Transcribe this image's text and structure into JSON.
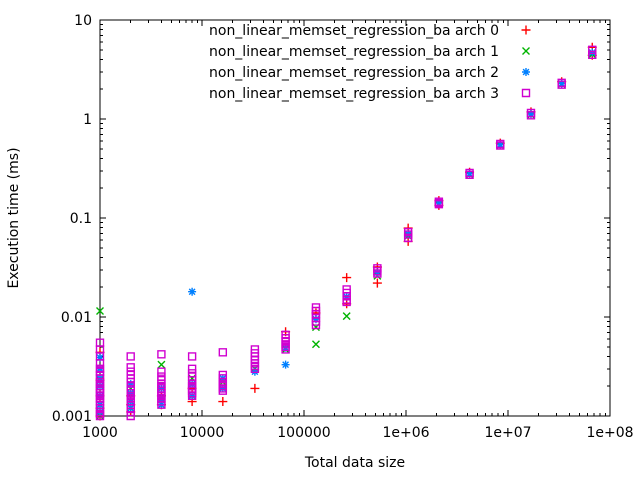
{
  "figure": {
    "background": "#ffffff",
    "frame_color": "#000000"
  },
  "chart_data": {
    "type": "scatter",
    "title": "",
    "xlabel": "Total data size",
    "ylabel": "Execution time (ms)",
    "x_scale": "log",
    "y_scale": "log",
    "xlim": [
      1000,
      100000000
    ],
    "ylim": [
      0.001,
      10
    ],
    "grid": false,
    "legend_position": "top-center-inside",
    "x_ticks": [
      {
        "value": 1000,
        "label": "1000"
      },
      {
        "value": 10000,
        "label": "10000"
      },
      {
        "value": 100000,
        "label": "100000"
      },
      {
        "value": 1000000,
        "label": "1e+06"
      },
      {
        "value": 10000000,
        "label": "1e+07"
      },
      {
        "value": 100000000,
        "label": "1e+08"
      }
    ],
    "y_ticks": [
      {
        "value": 0.001,
        "label": "0.001"
      },
      {
        "value": 0.01,
        "label": "0.01"
      },
      {
        "value": 0.1,
        "label": "0.1"
      },
      {
        "value": 1,
        "label": "1"
      },
      {
        "value": 10,
        "label": "10"
      }
    ],
    "series": [
      {
        "name": "non_linear_memset_regression_ba arch 0",
        "marker": "plus",
        "color": "#ff0000",
        "points": [
          [
            1000,
            0.0044
          ],
          [
            1000,
            0.0023
          ],
          [
            1000,
            0.0016
          ],
          [
            1000,
            0.0012
          ],
          [
            1000,
            0.001
          ],
          [
            2000,
            0.0016
          ],
          [
            2000,
            0.0013
          ],
          [
            2000,
            0.0011
          ],
          [
            4000,
            0.0016
          ],
          [
            4000,
            0.0013
          ],
          [
            8000,
            0.0019
          ],
          [
            8000,
            0.0014
          ],
          [
            16000,
            0.0014
          ],
          [
            33000,
            0.0019
          ],
          [
            66000,
            0.0071
          ],
          [
            131000,
            0.011
          ],
          [
            262000,
            0.025
          ],
          [
            262000,
            0.0136
          ],
          [
            524000,
            0.032
          ],
          [
            524000,
            0.022
          ],
          [
            1050000,
            0.079
          ],
          [
            1050000,
            0.058
          ],
          [
            2100000,
            0.15
          ],
          [
            2100000,
            0.134
          ],
          [
            4200000,
            0.29
          ],
          [
            8400000,
            0.57
          ],
          [
            16800000,
            1.18
          ],
          [
            33600000,
            2.38
          ],
          [
            67000000,
            5.3
          ],
          [
            67000000,
            4.4
          ]
        ]
      },
      {
        "name": "non_linear_memset_regression_ba arch 1",
        "marker": "cross",
        "color": "#00b400",
        "points": [
          [
            1000,
            0.0115
          ],
          [
            1000,
            0.0023
          ],
          [
            1000,
            0.0013
          ],
          [
            1000,
            0.001
          ],
          [
            2000,
            0.0019
          ],
          [
            2000,
            0.0014
          ],
          [
            2000,
            0.0012
          ],
          [
            4000,
            0.0033
          ],
          [
            4000,
            0.0015
          ],
          [
            8000,
            0.0024
          ],
          [
            8000,
            0.0016
          ],
          [
            16000,
            0.0022
          ],
          [
            33000,
            0.003
          ],
          [
            66000,
            0.0047
          ],
          [
            131000,
            0.0079
          ],
          [
            131000,
            0.0053
          ],
          [
            262000,
            0.0102
          ],
          [
            524000,
            0.026
          ],
          [
            1050000,
            0.066
          ],
          [
            2100000,
            0.138
          ],
          [
            4200000,
            0.275
          ],
          [
            8400000,
            0.545
          ],
          [
            16800000,
            1.1
          ],
          [
            33600000,
            2.26
          ],
          [
            67000000,
            4.5
          ]
        ]
      },
      {
        "name": "non_linear_memset_regression_ba arch 2",
        "marker": "asterisk",
        "color": "#0080ff",
        "points": [
          [
            1000,
            0.0039
          ],
          [
            1000,
            0.003
          ],
          [
            1000,
            0.0024
          ],
          [
            1000,
            0.002
          ],
          [
            1000,
            0.0016
          ],
          [
            1000,
            0.0013
          ],
          [
            1000,
            0.0011
          ],
          [
            2000,
            0.0021
          ],
          [
            2000,
            0.0017
          ],
          [
            2000,
            0.0014
          ],
          [
            2000,
            0.0012
          ],
          [
            4000,
            0.0019
          ],
          [
            4000,
            0.0015
          ],
          [
            4000,
            0.0013
          ],
          [
            8000,
            0.018
          ],
          [
            8000,
            0.0021
          ],
          [
            8000,
            0.0016
          ],
          [
            16000,
            0.0024
          ],
          [
            16000,
            0.0019
          ],
          [
            33000,
            0.0028
          ],
          [
            66000,
            0.0049
          ],
          [
            66000,
            0.0033
          ],
          [
            131000,
            0.0095
          ],
          [
            262000,
            0.016
          ],
          [
            524000,
            0.028
          ],
          [
            1050000,
            0.069
          ],
          [
            2100000,
            0.141
          ],
          [
            4200000,
            0.28
          ],
          [
            8400000,
            0.55
          ],
          [
            16800000,
            1.12
          ],
          [
            33600000,
            2.28
          ],
          [
            67000000,
            4.7
          ]
        ]
      },
      {
        "name": "non_linear_memset_regression_ba arch 3",
        "marker": "square",
        "color": "#d000d0",
        "points": [
          [
            1000,
            0.0055
          ],
          [
            1000,
            0.0047
          ],
          [
            1000,
            0.004
          ],
          [
            1000,
            0.0034
          ],
          [
            1000,
            0.003
          ],
          [
            1000,
            0.0028
          ],
          [
            1000,
            0.0026
          ],
          [
            1000,
            0.0024
          ],
          [
            1000,
            0.0022
          ],
          [
            1000,
            0.0021
          ],
          [
            1000,
            0.002
          ],
          [
            1000,
            0.0019
          ],
          [
            1000,
            0.0018
          ],
          [
            1000,
            0.0017
          ],
          [
            1000,
            0.0016
          ],
          [
            1000,
            0.0015
          ],
          [
            1000,
            0.0014
          ],
          [
            1000,
            0.0013
          ],
          [
            1000,
            0.0012
          ],
          [
            1000,
            0.0011
          ],
          [
            1000,
            0.00105
          ],
          [
            1000,
            0.001
          ],
          [
            2000,
            0.004
          ],
          [
            2000,
            0.0031
          ],
          [
            2000,
            0.0028
          ],
          [
            2000,
            0.0026
          ],
          [
            2000,
            0.0024
          ],
          [
            2000,
            0.0022
          ],
          [
            2000,
            0.002
          ],
          [
            2000,
            0.0018
          ],
          [
            2000,
            0.0017
          ],
          [
            2000,
            0.0016
          ],
          [
            2000,
            0.0015
          ],
          [
            2000,
            0.0014
          ],
          [
            2000,
            0.0013
          ],
          [
            2000,
            0.0012
          ],
          [
            2000,
            0.0011
          ],
          [
            2000,
            0.001
          ],
          [
            4000,
            0.0042
          ],
          [
            4000,
            0.0028
          ],
          [
            4000,
            0.0025
          ],
          [
            4000,
            0.0023
          ],
          [
            4000,
            0.0021
          ],
          [
            4000,
            0.002
          ],
          [
            4000,
            0.0019
          ],
          [
            4000,
            0.0018
          ],
          [
            4000,
            0.0017
          ],
          [
            4000,
            0.0016
          ],
          [
            4000,
            0.0015
          ],
          [
            4000,
            0.0014
          ],
          [
            4000,
            0.0013
          ],
          [
            8000,
            0.004
          ],
          [
            8000,
            0.003
          ],
          [
            8000,
            0.0027
          ],
          [
            8000,
            0.0025
          ],
          [
            8000,
            0.0023
          ],
          [
            8000,
            0.0021
          ],
          [
            8000,
            0.002
          ],
          [
            8000,
            0.0019
          ],
          [
            8000,
            0.0018
          ],
          [
            8000,
            0.0017
          ],
          [
            8000,
            0.0016
          ],
          [
            16000,
            0.0044
          ],
          [
            16000,
            0.0026
          ],
          [
            16000,
            0.0024
          ],
          [
            16000,
            0.0022
          ],
          [
            16000,
            0.0021
          ],
          [
            16000,
            0.002
          ],
          [
            16000,
            0.0019
          ],
          [
            16000,
            0.0018
          ],
          [
            33000,
            0.0047
          ],
          [
            33000,
            0.0043
          ],
          [
            33000,
            0.004
          ],
          [
            33000,
            0.0037
          ],
          [
            33000,
            0.0034
          ],
          [
            33000,
            0.0032
          ],
          [
            33000,
            0.003
          ],
          [
            66000,
            0.0066
          ],
          [
            66000,
            0.0061
          ],
          [
            66000,
            0.0057
          ],
          [
            66000,
            0.0053
          ],
          [
            66000,
            0.005
          ],
          [
            66000,
            0.0047
          ],
          [
            131000,
            0.0125
          ],
          [
            131000,
            0.0115
          ],
          [
            131000,
            0.0107
          ],
          [
            131000,
            0.0098
          ],
          [
            131000,
            0.009
          ],
          [
            131000,
            0.0083
          ],
          [
            262000,
            0.019
          ],
          [
            262000,
            0.0175
          ],
          [
            262000,
            0.0162
          ],
          [
            262000,
            0.015
          ],
          [
            262000,
            0.0142
          ],
          [
            524000,
            0.031
          ],
          [
            524000,
            0.029
          ],
          [
            524000,
            0.0275
          ],
          [
            1050000,
            0.072
          ],
          [
            1050000,
            0.068
          ],
          [
            1050000,
            0.063
          ],
          [
            2100000,
            0.146
          ],
          [
            2100000,
            0.142
          ],
          [
            2100000,
            0.138
          ],
          [
            4200000,
            0.285
          ],
          [
            4200000,
            0.273
          ],
          [
            8400000,
            0.56
          ],
          [
            8400000,
            0.54
          ],
          [
            16800000,
            1.15
          ],
          [
            16800000,
            1.09
          ],
          [
            33600000,
            2.32
          ],
          [
            33600000,
            2.22
          ],
          [
            67000000,
            5.0
          ],
          [
            67000000,
            4.45
          ]
        ]
      }
    ]
  }
}
